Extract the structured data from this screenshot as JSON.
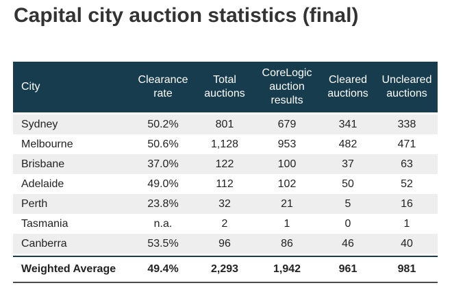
{
  "title": "Capital city auction statistics (final)",
  "chart_data": {
    "type": "table",
    "columns": [
      "City",
      "Clearance rate",
      "Total auctions",
      "CoreLogic auction results",
      "Cleared auctions",
      "Uncleared auctions"
    ],
    "rows": [
      [
        "Sydney",
        "50.2%",
        "801",
        "679",
        "341",
        "338"
      ],
      [
        "Melbourne",
        "50.6%",
        "1,128",
        "953",
        "482",
        "471"
      ],
      [
        "Brisbane",
        "37.0%",
        "122",
        "100",
        "37",
        "63"
      ],
      [
        "Adelaide",
        "49.0%",
        "112",
        "102",
        "50",
        "52"
      ],
      [
        "Perth",
        "23.8%",
        "32",
        "21",
        "5",
        "16"
      ],
      [
        "Tasmania",
        "n.a.",
        "2",
        "1",
        "0",
        "1"
      ],
      [
        "Canberra",
        "53.5%",
        "96",
        "86",
        "46",
        "40"
      ]
    ],
    "total": [
      "Weighted Average",
      "49.4%",
      "2,293",
      "1,942",
      "961",
      "981"
    ]
  },
  "colors": {
    "header_bg": "#163c4e",
    "header_text": "#ffffff",
    "row_shade": "#eeeeee"
  }
}
